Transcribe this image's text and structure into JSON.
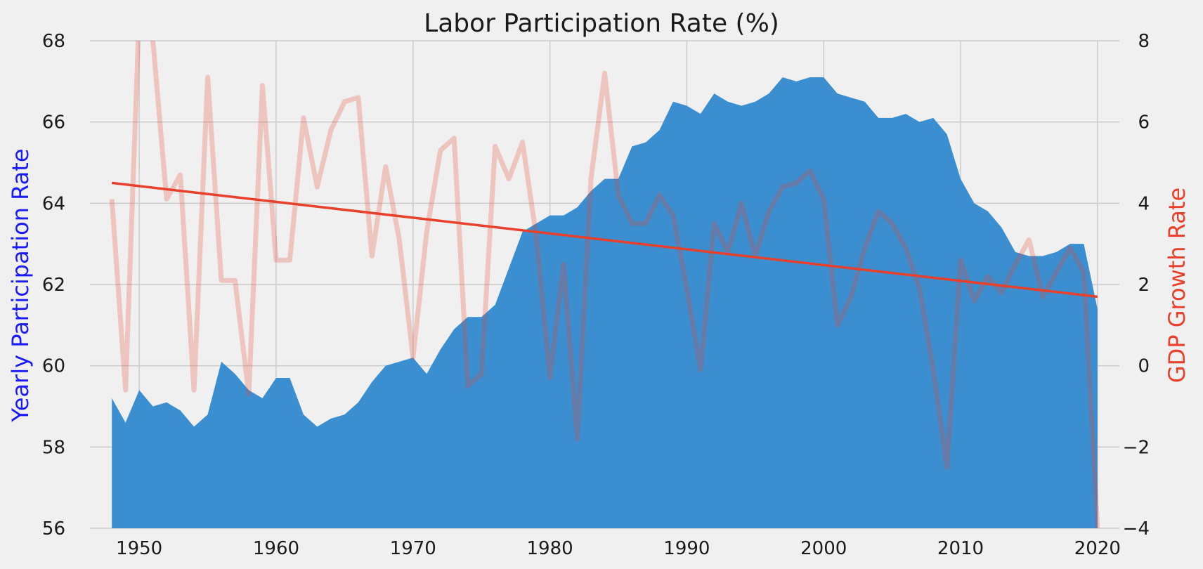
{
  "chart_data": {
    "type": "area",
    "title": "Labor Participation Rate (%)",
    "xlabel": "",
    "ylabel": "Yearly Participation Rate",
    "y2label": "GDP Growth Rate",
    "xlim": [
      1946.4,
      2021.6
    ],
    "ylim": [
      56,
      68
    ],
    "y2lim": [
      -4,
      8
    ],
    "x_ticks": [
      1950,
      1960,
      1970,
      1980,
      1990,
      2000,
      2010,
      2020
    ],
    "y_ticks": [
      56,
      58,
      60,
      62,
      64,
      66,
      68
    ],
    "y2_ticks": [
      -4,
      -2,
      0,
      2,
      4,
      6,
      8
    ],
    "y2_tick_labels": [
      "−4",
      "−2",
      "0",
      "2",
      "4",
      "6",
      "8"
    ],
    "grid": true,
    "colors": {
      "background": "#f0f0f0",
      "grid": "#cbcbcb",
      "area_fill": "#3b8fd0",
      "gdp_line": "#f3b0b0",
      "trend_line": "#e8402b",
      "ylabel": "#1a1aff",
      "y2label": "#e8402b",
      "text": "#1a1a1a"
    },
    "series": [
      {
        "kind": "area",
        "axis": "left",
        "x": [
          1948,
          1949,
          1950,
          1951,
          1952,
          1953,
          1954,
          1955,
          1956,
          1957,
          1958,
          1959,
          1960,
          1961,
          1962,
          1963,
          1964,
          1965,
          1966,
          1967,
          1968,
          1969,
          1970,
          1971,
          1972,
          1973,
          1974,
          1975,
          1976,
          1977,
          1978,
          1979,
          1980,
          1981,
          1982,
          1983,
          1984,
          1985,
          1986,
          1987,
          1988,
          1989,
          1990,
          1991,
          1992,
          1993,
          1994,
          1995,
          1996,
          1997,
          1998,
          1999,
          2000,
          2001,
          2002,
          2003,
          2004,
          2005,
          2006,
          2007,
          2008,
          2009,
          2010,
          2011,
          2012,
          2013,
          2014,
          2015,
          2016,
          2017,
          2018,
          2019,
          2020
        ],
        "values": [
          59.2,
          58.6,
          59.4,
          59.0,
          59.1,
          58.9,
          58.5,
          58.8,
          60.1,
          59.8,
          59.4,
          59.2,
          59.7,
          59.7,
          58.8,
          58.5,
          58.7,
          58.8,
          59.1,
          59.6,
          60.0,
          60.1,
          60.2,
          59.8,
          60.4,
          60.9,
          61.2,
          61.2,
          61.5,
          62.4,
          63.3,
          63.5,
          63.7,
          63.7,
          63.9,
          64.3,
          64.6,
          64.6,
          65.4,
          65.5,
          65.8,
          66.5,
          66.4,
          66.2,
          66.7,
          66.5,
          66.4,
          66.5,
          66.7,
          67.1,
          67.0,
          67.1,
          67.1,
          66.7,
          66.6,
          66.5,
          66.1,
          66.1,
          66.2,
          66.0,
          66.1,
          65.7,
          64.6,
          64.0,
          63.8,
          63.4,
          62.8,
          62.7,
          62.7,
          62.8,
          63.0,
          63.0,
          61.4
        ]
      },
      {
        "kind": "line",
        "axis": "right",
        "x": [
          1948,
          1949,
          1950,
          1951,
          1952,
          1953,
          1954,
          1955,
          1956,
          1957,
          1958,
          1959,
          1960,
          1961,
          1962,
          1963,
          1964,
          1965,
          1966,
          1967,
          1968,
          1969,
          1970,
          1971,
          1972,
          1973,
          1974,
          1975,
          1976,
          1977,
          1978,
          1979,
          1980,
          1981,
          1982,
          1983,
          1984,
          1985,
          1986,
          1987,
          1988,
          1989,
          1990,
          1991,
          1992,
          1993,
          1994,
          1995,
          1996,
          1997,
          1998,
          1999,
          2000,
          2001,
          2002,
          2003,
          2004,
          2005,
          2006,
          2007,
          2008,
          2009,
          2010,
          2011,
          2012,
          2013,
          2014,
          2015,
          2016,
          2017,
          2018,
          2019,
          2020
        ],
        "values": [
          4.1,
          -0.6,
          8.7,
          8.0,
          4.1,
          4.7,
          -0.6,
          7.1,
          2.1,
          2.1,
          -0.7,
          6.9,
          2.6,
          2.6,
          6.1,
          4.4,
          5.8,
          6.5,
          6.6,
          2.7,
          4.9,
          3.1,
          0.2,
          3.3,
          5.3,
          5.6,
          -0.5,
          -0.2,
          5.4,
          4.6,
          5.5,
          3.2,
          -0.3,
          2.5,
          -1.8,
          4.6,
          7.2,
          4.2,
          3.5,
          3.5,
          4.2,
          3.7,
          1.9,
          -0.1,
          3.5,
          2.8,
          4.0,
          2.7,
          3.8,
          4.4,
          4.5,
          4.8,
          4.1,
          1.0,
          1.7,
          2.9,
          3.8,
          3.5,
          2.9,
          1.9,
          -0.1,
          -2.5,
          2.6,
          1.6,
          2.2,
          1.8,
          2.5,
          3.1,
          1.7,
          2.3,
          2.9,
          2.3,
          -4.0
        ]
      },
      {
        "kind": "trend",
        "axis": "right",
        "x": [
          1948,
          2020
        ],
        "values": [
          4.5,
          1.7
        ]
      }
    ]
  }
}
